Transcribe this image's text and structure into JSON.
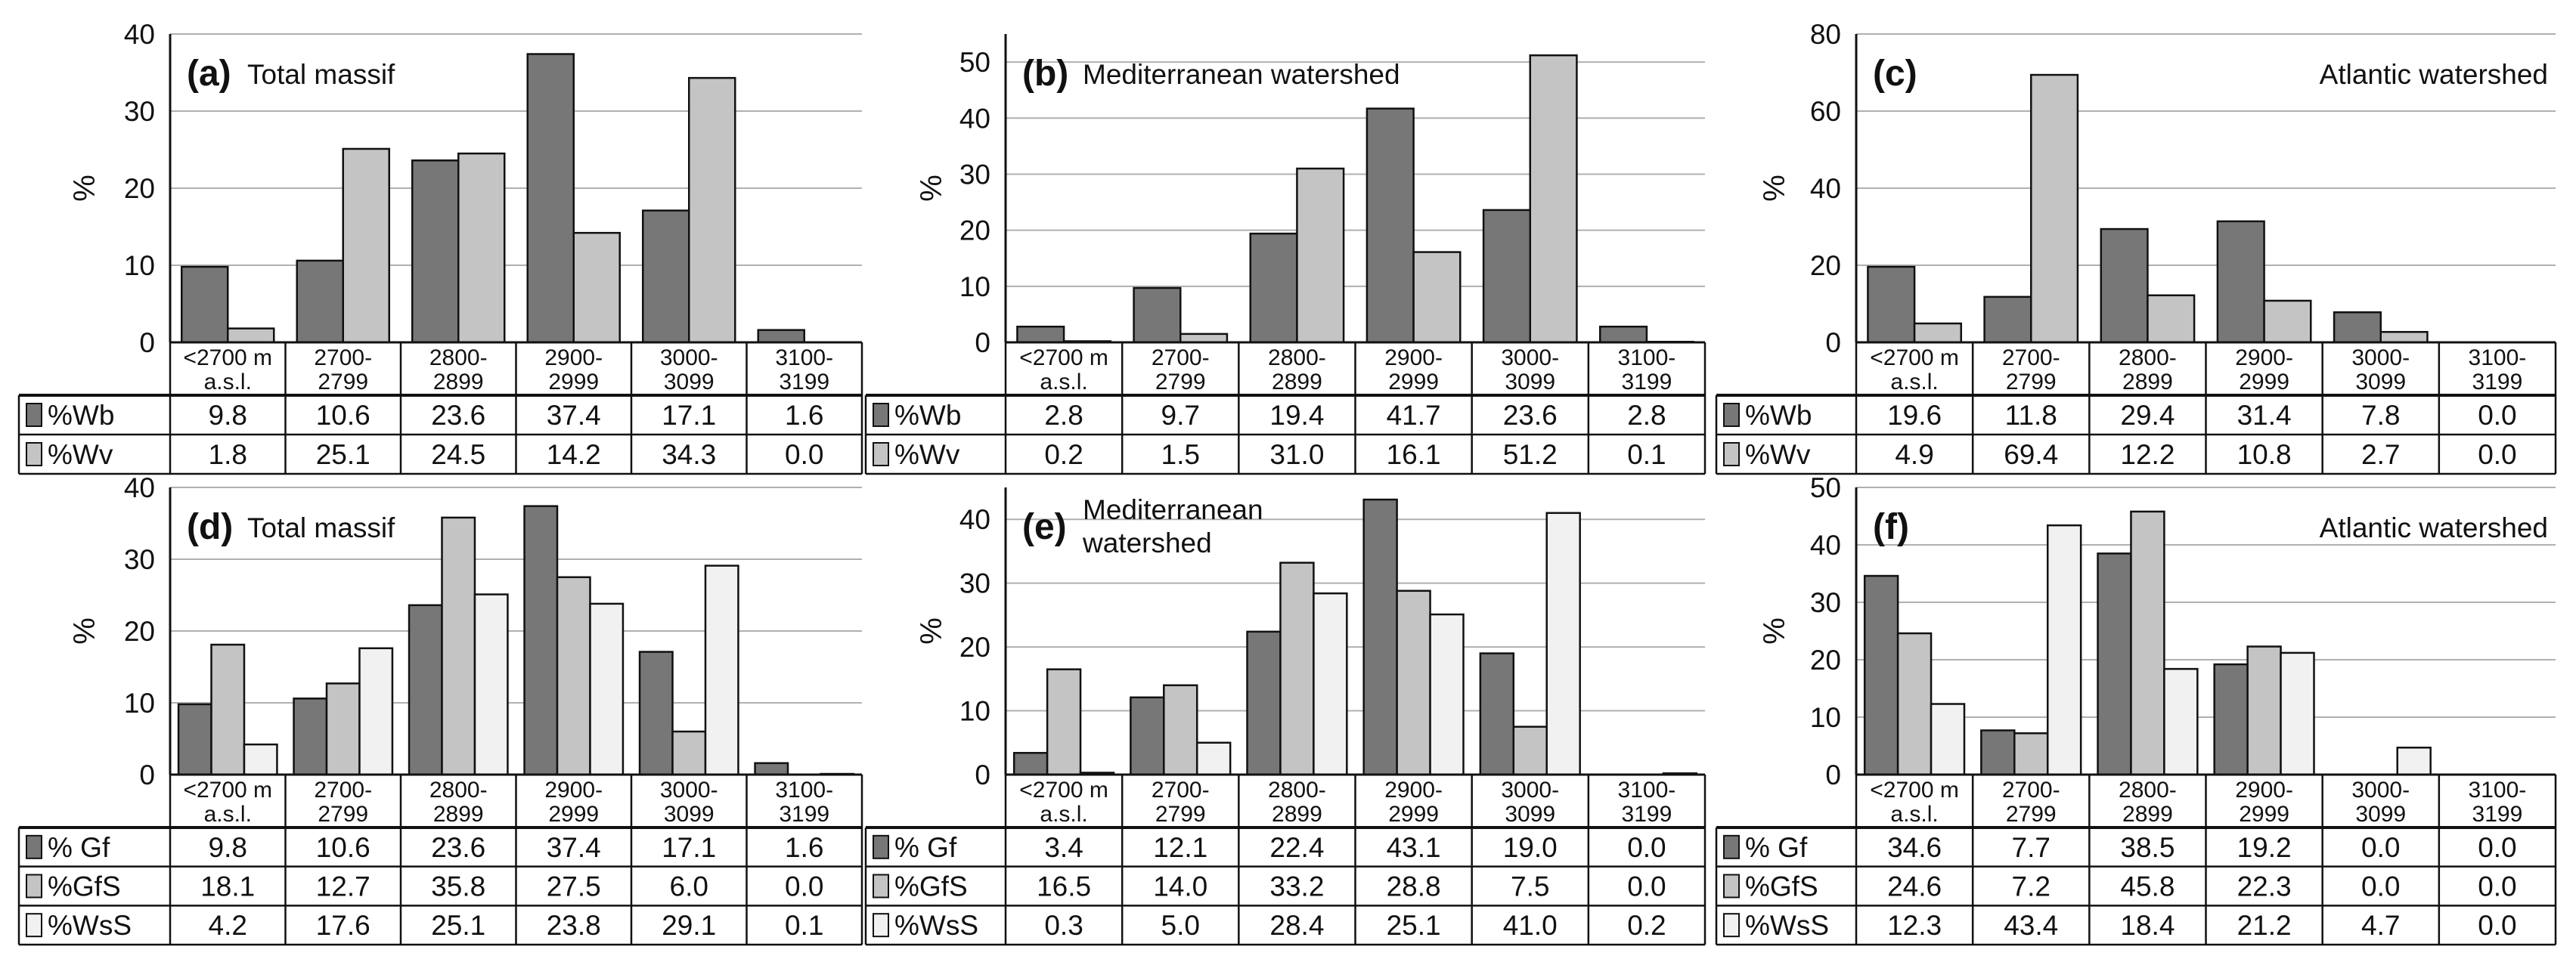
{
  "colors": {
    "Wb": "#777777",
    "Wv": "#c4c4c4",
    "Gf": "#777777",
    "GfS": "#c4c4c4",
    "WsS": "#f1f1f1",
    "grid": "#b0b0b0",
    "border": "#111111"
  },
  "chart_data": [
    {
      "id": "a",
      "type": "bar",
      "panel_label": "(a)",
      "title": "Total massif",
      "title_position": "left",
      "ylabel": "%",
      "ylim": [
        0,
        40
      ],
      "yticks": [
        0,
        10,
        20,
        30,
        40
      ],
      "grid": true,
      "categories": [
        [
          "<2700 m",
          "a.s.l."
        ],
        [
          "2700-",
          "2799"
        ],
        [
          "2800-",
          "2899"
        ],
        [
          "2900-",
          "2999"
        ],
        [
          "3000-",
          "3099"
        ],
        [
          "3100-",
          "3199"
        ]
      ],
      "series": [
        {
          "name": "%Wb",
          "color_key": "Wb",
          "values": [
            9.8,
            10.6,
            23.6,
            37.4,
            17.1,
            1.6
          ]
        },
        {
          "name": "%Wv",
          "color_key": "Wv",
          "values": [
            1.8,
            25.1,
            24.5,
            14.2,
            34.3,
            0.0
          ]
        }
      ]
    },
    {
      "id": "b",
      "type": "bar",
      "panel_label": "(b)",
      "title": "Mediterranean watershed",
      "title_position": "left",
      "ylabel": "%",
      "ylim": [
        0,
        55
      ],
      "yticks": [
        0,
        10,
        20,
        30,
        40,
        50
      ],
      "grid": true,
      "categories": [
        [
          "<2700 m",
          "a.s.l."
        ],
        [
          "2700-",
          "2799"
        ],
        [
          "2800-",
          "2899"
        ],
        [
          "2900-",
          "2999"
        ],
        [
          "3000-",
          "3099"
        ],
        [
          "3100-",
          "3199"
        ]
      ],
      "series": [
        {
          "name": "%Wb",
          "color_key": "Wb",
          "values": [
            2.8,
            9.7,
            19.4,
            41.7,
            23.6,
            2.8
          ]
        },
        {
          "name": "%Wv",
          "color_key": "Wv",
          "values": [
            0.2,
            1.5,
            31.0,
            16.1,
            51.2,
            0.1
          ]
        }
      ]
    },
    {
      "id": "c",
      "type": "bar",
      "panel_label": "(c)",
      "title": "Atlantic watershed",
      "title_position": "right",
      "ylabel": "%",
      "ylim": [
        0,
        80
      ],
      "yticks": [
        0,
        20,
        40,
        60,
        80
      ],
      "grid": true,
      "categories": [
        [
          "<2700 m",
          "a.s.l."
        ],
        [
          "2700-",
          "2799"
        ],
        [
          "2800-",
          "2899"
        ],
        [
          "2900-",
          "2999"
        ],
        [
          "3000-",
          "3099"
        ],
        [
          "3100-",
          "3199"
        ]
      ],
      "series": [
        {
          "name": "%Wb",
          "color_key": "Wb",
          "values": [
            19.6,
            11.8,
            29.4,
            31.4,
            7.8,
            0.0
          ]
        },
        {
          "name": "%Wv",
          "color_key": "Wv",
          "values": [
            4.9,
            69.4,
            12.2,
            10.8,
            2.7,
            0.0
          ]
        }
      ]
    },
    {
      "id": "d",
      "type": "bar",
      "panel_label": "(d)",
      "title": "Total massif",
      "title_position": "left",
      "ylabel": "%",
      "ylim": [
        0,
        40
      ],
      "yticks": [
        0,
        10,
        20,
        30,
        40
      ],
      "grid": true,
      "categories": [
        [
          "<2700 m",
          "a.s.l."
        ],
        [
          "2700-",
          "2799"
        ],
        [
          "2800-",
          "2899"
        ],
        [
          "2900-",
          "2999"
        ],
        [
          "3000-",
          "3099"
        ],
        [
          "3100-",
          "3199"
        ]
      ],
      "series": [
        {
          "name": "% Gf",
          "color_key": "Gf",
          "values": [
            9.8,
            10.6,
            23.6,
            37.4,
            17.1,
            1.6
          ]
        },
        {
          "name": "%GfS",
          "color_key": "GfS",
          "values": [
            18.1,
            12.7,
            35.8,
            27.5,
            6.0,
            0.0
          ]
        },
        {
          "name": "%WsS",
          "color_key": "WsS",
          "values": [
            4.2,
            17.6,
            25.1,
            23.8,
            29.1,
            0.1
          ]
        }
      ]
    },
    {
      "id": "e",
      "type": "bar",
      "panel_label": "(e)",
      "title": [
        "Mediterranean",
        "watershed"
      ],
      "title_position": "left",
      "ylabel": "%",
      "ylim": [
        0,
        45
      ],
      "yticks": [
        0,
        10,
        20,
        30,
        40
      ],
      "grid": true,
      "categories": [
        [
          "<2700 m",
          "a.s.l."
        ],
        [
          "2700-",
          "2799"
        ],
        [
          "2800-",
          "2899"
        ],
        [
          "2900-",
          "2999"
        ],
        [
          "3000-",
          "3099"
        ],
        [
          "3100-",
          "3199"
        ]
      ],
      "series": [
        {
          "name": "% Gf",
          "color_key": "Gf",
          "values": [
            3.4,
            12.1,
            22.4,
            43.1,
            19.0,
            0.0
          ]
        },
        {
          "name": "%GfS",
          "color_key": "GfS",
          "values": [
            16.5,
            14.0,
            33.2,
            28.8,
            7.5,
            0.0
          ]
        },
        {
          "name": "%WsS",
          "color_key": "WsS",
          "values": [
            0.3,
            5.0,
            28.4,
            25.1,
            41.0,
            0.2
          ]
        }
      ]
    },
    {
      "id": "f",
      "type": "bar",
      "panel_label": "(f)",
      "title": "Atlantic watershed",
      "title_position": "right",
      "ylabel": "%",
      "ylim": [
        0,
        50
      ],
      "yticks": [
        0,
        10,
        20,
        30,
        40,
        50
      ],
      "grid": true,
      "categories": [
        [
          "<2700 m",
          "a.s.l."
        ],
        [
          "2700-",
          "2799"
        ],
        [
          "2800-",
          "2899"
        ],
        [
          "2900-",
          "2999"
        ],
        [
          "3000-",
          "3099"
        ],
        [
          "3100-",
          "3199"
        ]
      ],
      "series": [
        {
          "name": "% Gf",
          "color_key": "Gf",
          "values": [
            34.6,
            7.7,
            38.5,
            19.2,
            0.0,
            0.0
          ]
        },
        {
          "name": "%GfS",
          "color_key": "GfS",
          "values": [
            24.6,
            7.2,
            45.8,
            22.3,
            0.0,
            0.0
          ]
        },
        {
          "name": "%WsS",
          "color_key": "WsS",
          "values": [
            12.3,
            43.4,
            18.4,
            21.2,
            4.7,
            0.0
          ]
        }
      ]
    }
  ]
}
